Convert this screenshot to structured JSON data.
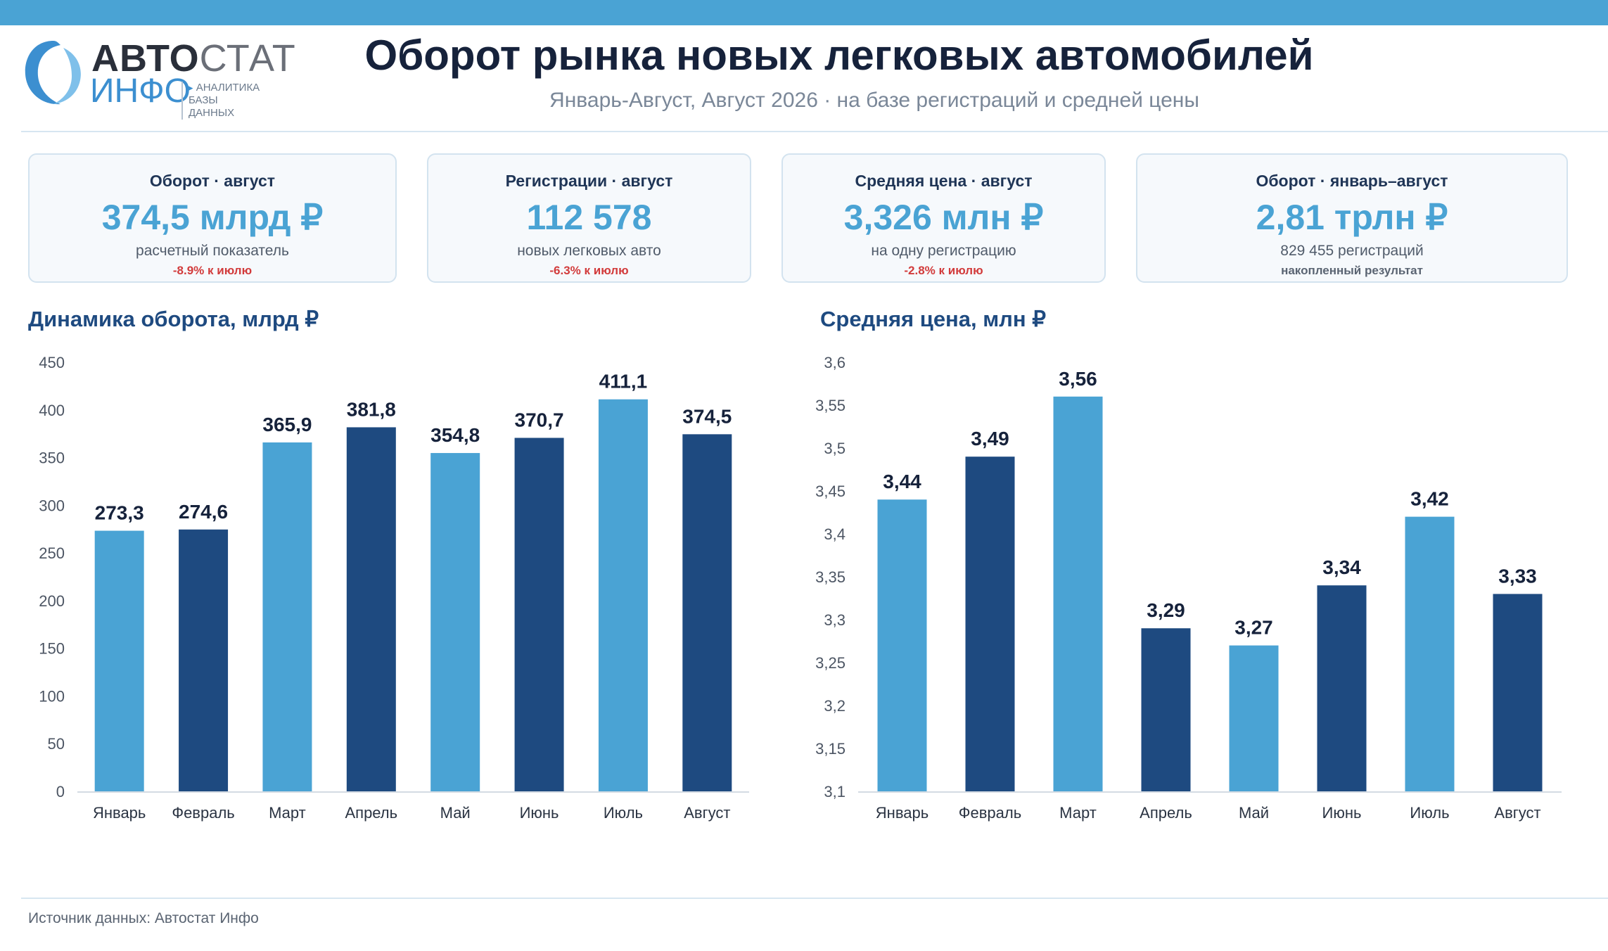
{
  "header": {
    "logo": {
      "line1_bold": "АВТО",
      "line1_light": "СТАТ",
      "line2": "ИНФО",
      "tag1": "АНАЛИТИКА",
      "tag2": "БАЗЫ ДАННЫХ",
      "tag_marker": "▸"
    },
    "title": "Оборот рынка новых легковых автомобилей",
    "subtitle": "Январь-Август, Август 2026 · на базе регистраций и средней цены"
  },
  "cards": [
    {
      "label": "Оборот · август",
      "value": "374,5 млрд ₽",
      "note": "расчетный показатель",
      "delta": "-8.9% к июлю"
    },
    {
      "label": "Регистрации · август",
      "value": "112 578",
      "note": "новых легковых авто",
      "delta": "-6.3% к июлю"
    },
    {
      "label": "Средняя цена · август",
      "value": "3,326 млн ₽",
      "note": "на одну регистрацию",
      "delta": "-2.8% к июлю"
    },
    {
      "label": "Оборот · январь–август",
      "value": "2,81 трлн ₽",
      "note": "829 455 регистраций",
      "delta": "накопленный результат"
    }
  ],
  "colors": {
    "light": "#4aa3d4",
    "dark": "#1e4a80",
    "accent": "#4aa3d4",
    "negative": "#d23b3b"
  },
  "chart_data": [
    {
      "type": "bar",
      "title": "Динамика оборота, млрд ₽",
      "categories": [
        "Январь",
        "Февраль",
        "Март",
        "Апрель",
        "Май",
        "Июнь",
        "Июль",
        "Август"
      ],
      "values": [
        273.3,
        274.6,
        365.9,
        381.8,
        354.8,
        370.7,
        411.1,
        374.5
      ],
      "value_labels": [
        "273,3",
        "274,6",
        "365,9",
        "381,8",
        "354,8",
        "370,7",
        "411,1",
        "374,5"
      ],
      "bar_colors": [
        "light",
        "dark",
        "light",
        "dark",
        "light",
        "dark",
        "light",
        "dark"
      ],
      "ylim": [
        0,
        450
      ],
      "yticks": [
        0,
        50,
        100,
        150,
        200,
        250,
        300,
        350,
        400,
        450
      ],
      "ytick_labels": [
        "0",
        "50",
        "100",
        "150",
        "200",
        "250",
        "300",
        "350",
        "400",
        "450"
      ],
      "grid": false
    },
    {
      "type": "bar",
      "title": "Средняя цена, млн ₽",
      "categories": [
        "Январь",
        "Февраль",
        "Март",
        "Апрель",
        "Май",
        "Июнь",
        "Июль",
        "Август"
      ],
      "values": [
        3.44,
        3.49,
        3.56,
        3.29,
        3.27,
        3.34,
        3.42,
        3.33
      ],
      "value_labels": [
        "3,44",
        "3,49",
        "3,56",
        "3,29",
        "3,27",
        "3,34",
        "3,42",
        "3,33"
      ],
      "bar_colors": [
        "light",
        "dark",
        "light",
        "dark",
        "light",
        "dark",
        "light",
        "dark"
      ],
      "ylim": [
        3.1,
        3.6
      ],
      "yticks": [
        3.1,
        3.15,
        3.2,
        3.25,
        3.3,
        3.35,
        3.4,
        3.45,
        3.5,
        3.55,
        3.6
      ],
      "ytick_labels": [
        "3,1",
        "3,15",
        "3,2",
        "3,25",
        "3,3",
        "3,35",
        "3,4",
        "3,45",
        "3,5",
        "3,55",
        "3,6"
      ],
      "grid": false
    }
  ],
  "footer": {
    "source": "Источник данных: Автостат Инфо"
  }
}
